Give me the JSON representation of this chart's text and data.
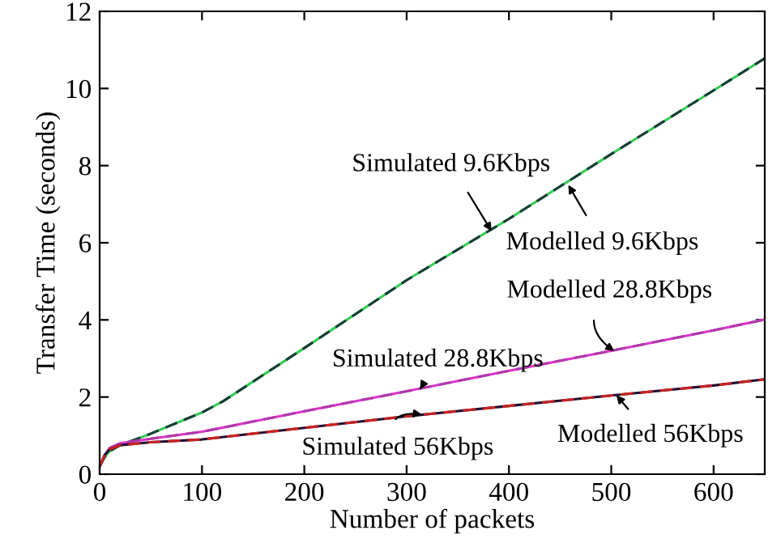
{
  "chart_data": {
    "type": "line",
    "xlabel": "Number of packets",
    "ylabel": "Transfer Time (seconds)",
    "xlim": [
      0,
      650
    ],
    "ylim": [
      0,
      12
    ],
    "xticks": [
      0,
      100,
      200,
      300,
      400,
      500,
      600
    ],
    "yticks": [
      0,
      2,
      4,
      6,
      8,
      10,
      12
    ],
    "grid": false,
    "legend": false,
    "marker": "none",
    "series": [
      {
        "color": "#33cc55",
        "line_style": "solid",
        "x": [
          0,
          5,
          10,
          20,
          50,
          100,
          120,
          200,
          300,
          400,
          500,
          600,
          650
        ],
        "values": [
          0.2,
          0.45,
          0.6,
          0.75,
          1.05,
          1.6,
          1.88,
          3.27,
          5.03,
          6.62,
          8.3,
          9.95,
          10.78
        ]
      },
      {
        "color": "#1a3a3a",
        "line_style": "dashed",
        "x": [
          0,
          5,
          10,
          20,
          50,
          100,
          120,
          200,
          300,
          400,
          500,
          600,
          650
        ],
        "values": [
          0.2,
          0.45,
          0.6,
          0.75,
          1.05,
          1.6,
          1.88,
          3.27,
          5.03,
          6.62,
          8.3,
          9.95,
          10.78
        ]
      },
      {
        "color": "#dd33cc",
        "line_style": "solid",
        "x": [
          0,
          5,
          10,
          20,
          50,
          100,
          200,
          300,
          400,
          500,
          600,
          650
        ],
        "values": [
          0.2,
          0.5,
          0.68,
          0.8,
          0.92,
          1.1,
          1.63,
          2.15,
          2.68,
          3.2,
          3.73,
          4.01
        ]
      },
      {
        "color": "#b03aa8",
        "line_style": "dashed",
        "x": [
          0,
          5,
          10,
          20,
          50,
          100,
          200,
          300,
          400,
          500,
          600,
          650
        ],
        "values": [
          0.2,
          0.5,
          0.68,
          0.8,
          0.92,
          1.1,
          1.63,
          2.15,
          2.68,
          3.2,
          3.73,
          4.01
        ]
      },
      {
        "color": "#221133",
        "line_style": "solid",
        "x": [
          0,
          5,
          10,
          20,
          50,
          100,
          200,
          300,
          400,
          500,
          600,
          650
        ],
        "values": [
          0.2,
          0.5,
          0.65,
          0.75,
          0.83,
          0.9,
          1.2,
          1.5,
          1.77,
          2.04,
          2.3,
          2.46
        ]
      },
      {
        "color": "#cc2222",
        "line_style": "dashed",
        "x": [
          0,
          5,
          10,
          20,
          50,
          100,
          200,
          300,
          400,
          500,
          600,
          650
        ],
        "values": [
          0.2,
          0.5,
          0.65,
          0.75,
          0.83,
          0.9,
          1.2,
          1.5,
          1.77,
          2.04,
          2.3,
          2.46
        ]
      }
    ],
    "annotations": [
      {
        "text": "Simulated 9.6Kbps",
        "x": 383,
        "y": 6.3
      },
      {
        "text": "Modelled 9.6Kbps",
        "x": 458,
        "y": 7.5
      },
      {
        "text": "Modelled 28.8Kbps",
        "x": 503,
        "y": 3.19
      },
      {
        "text": "Simulated 28.8Kbps",
        "x": 313,
        "y": 2.2
      },
      {
        "text": "Simulated 56Kbps",
        "x": 315,
        "y": 1.55
      },
      {
        "text": "Modelled 56Kbps",
        "x": 505,
        "y": 2.05
      }
    ]
  }
}
